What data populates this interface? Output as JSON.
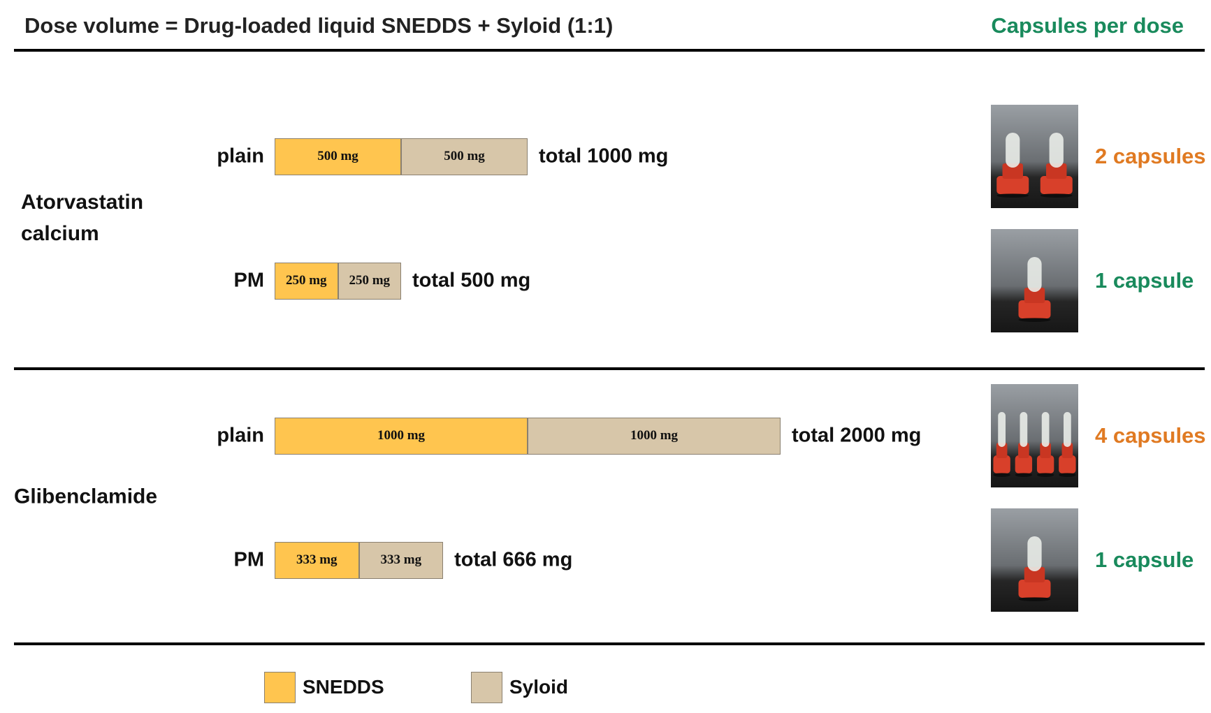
{
  "chart_data": {
    "type": "bar",
    "orientation": "horizontal",
    "stacked": true,
    "title": "Dose volume  =  Drug-loaded liquid SNEDDS + Syloid (1:1)",
    "capsules_header": "Capsules per dose",
    "groups": [
      "Atorvastatin calcium",
      "Glibenclamide"
    ],
    "categories": [
      "plain",
      "PM",
      "plain",
      "PM"
    ],
    "series": [
      {
        "name": "SNEDDS",
        "color": "#ffc54f",
        "values": [
          500,
          250,
          1000,
          333
        ],
        "value_labels": [
          "500 mg",
          "250 mg",
          "1000 mg",
          "333 mg"
        ]
      },
      {
        "name": "Syloid",
        "color": "#d7c6a9",
        "values": [
          500,
          250,
          1000,
          333
        ],
        "value_labels": [
          "500 mg",
          "250 mg",
          "1000 mg",
          "333 mg"
        ]
      }
    ],
    "totals": [
      1000,
      500,
      2000,
      666
    ],
    "total_labels": [
      "total 1000 mg",
      "total 500 mg",
      "total 2000 mg",
      "total 666 mg"
    ],
    "capsules": [
      2,
      1,
      4,
      1
    ],
    "capsule_labels": [
      "2 capsules",
      "1 capsule",
      "4 capsules",
      "1 capsule"
    ],
    "capsule_colors": [
      "#e07a22",
      "#198a5c",
      "#e07a22",
      "#198a5c"
    ]
  }
}
